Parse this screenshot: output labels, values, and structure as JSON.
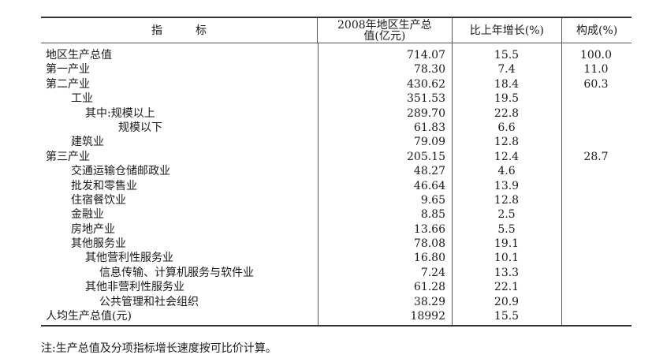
{
  "table": {
    "headers": [
      "指　　　标",
      "2008年地区生产总值(亿元)",
      "比上年增长(%)",
      "构成(%)"
    ],
    "rows": [
      {
        "label": "地区生产总值",
        "level": 0,
        "value": "714.07",
        "growth": "15.5",
        "share": "100.0"
      },
      {
        "label": "第一产业",
        "level": 0,
        "value": "78.30",
        "growth": "7.4",
        "share": "11.0"
      },
      {
        "label": "第二产业",
        "level": 0,
        "value": "430.62",
        "growth": "18.4",
        "share": "60.3"
      },
      {
        "label": "工业",
        "level": 1,
        "value": "351.53",
        "growth": "19.5",
        "share": ""
      },
      {
        "label": "其中:规模以上",
        "level": 2,
        "value": "289.70",
        "growth": "22.8",
        "share": ""
      },
      {
        "label": "规模以下",
        "level": 4,
        "value": "61.83",
        "growth": "6.6",
        "share": ""
      },
      {
        "label": "建筑业",
        "level": 1,
        "value": "79.09",
        "growth": "12.8",
        "share": ""
      },
      {
        "label": "第三产业",
        "level": 0,
        "value": "205.15",
        "growth": "12.4",
        "share": "28.7"
      },
      {
        "label": "交通运输仓储邮政业",
        "level": 1,
        "value": "48.27",
        "growth": "4.6",
        "share": ""
      },
      {
        "label": "批发和零售业",
        "level": 1,
        "value": "46.64",
        "growth": "13.9",
        "share": ""
      },
      {
        "label": "住宿餐饮业",
        "level": 1,
        "value": "9.65",
        "growth": "12.8",
        "share": ""
      },
      {
        "label": "金融业",
        "level": 1,
        "value": "8.85",
        "growth": "2.5",
        "share": ""
      },
      {
        "label": "房地产业",
        "level": 1,
        "value": "13.66",
        "growth": "5.5",
        "share": ""
      },
      {
        "label": "其他服务业",
        "level": 1,
        "value": "78.08",
        "growth": "19.1",
        "share": ""
      },
      {
        "label": "其他营利性服务业",
        "level": 2,
        "value": "16.80",
        "growth": "10.1",
        "share": ""
      },
      {
        "label": "信息传输、计算机服务与软件业",
        "level": 3,
        "value": "7.24",
        "growth": "13.3",
        "share": ""
      },
      {
        "label": "其他非营利性服务业",
        "level": 2,
        "value": "61.28",
        "growth": "22.1",
        "share": ""
      },
      {
        "label": "公共管理和社会组织",
        "level": 3,
        "value": "38.29",
        "growth": "20.9",
        "share": ""
      },
      {
        "label": "人均生产总值(元)",
        "level": 0,
        "value": "18992",
        "growth": "15.5",
        "share": ""
      }
    ]
  },
  "note": "注:生产总值及分项指标增长速度按可比价计算。"
}
